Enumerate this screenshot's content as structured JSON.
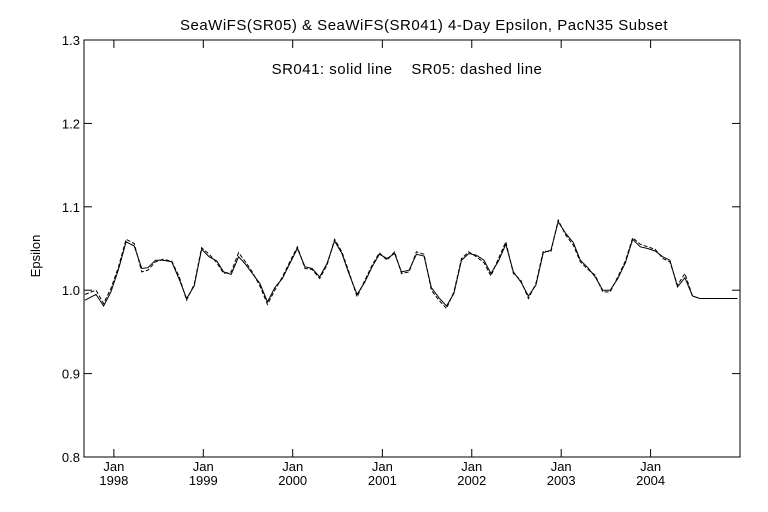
{
  "chart_data": {
    "type": "line",
    "title": "SeaWiFS(SR05) & SeaWiFS(SR041) 4-Day Epsilon, PacN35 Subset",
    "annotation": "SR041: solid line    SR05: dashed line",
    "xlabel": "",
    "ylabel": "Epsilon",
    "ylim": [
      0.8,
      1.3
    ],
    "yticks": [
      "0.8",
      "0.9",
      "1.0",
      "1.1",
      "1.2",
      "1.3"
    ],
    "xlim": [
      "1997-09-01",
      "2004-12-31"
    ],
    "xticks": [
      {
        "date": "1998-01-01",
        "month": "Jan",
        "year": "1998"
      },
      {
        "date": "1999-01-01",
        "month": "Jan",
        "year": "1999"
      },
      {
        "date": "2000-01-01",
        "month": "Jan",
        "year": "2000"
      },
      {
        "date": "2001-01-01",
        "month": "Jan",
        "year": "2001"
      },
      {
        "date": "2002-01-01",
        "month": "Jan",
        "year": "2002"
      },
      {
        "date": "2003-01-01",
        "month": "Jan",
        "year": "2003"
      },
      {
        "date": "2004-01-01",
        "month": "Jan",
        "year": "2004"
      }
    ],
    "grid": false,
    "series": [
      {
        "name": "SR041",
        "style": "solid",
        "x": [
          "1997-09-05",
          "1997-10-20",
          "1997-11-20",
          "1997-12-20",
          "1998-01-20",
          "1998-02-20",
          "1998-03-25",
          "1998-04-25",
          "1998-05-20",
          "1998-06-20",
          "1998-07-20",
          "1998-08-25",
          "1998-09-25",
          "1998-10-25",
          "1998-11-25",
          "1998-12-25",
          "1999-01-25",
          "1999-02-25",
          "1999-03-25",
          "1999-04-25",
          "1999-05-25",
          "1999-06-20",
          "1999-07-20",
          "1999-08-20",
          "1999-09-20",
          "1999-10-20",
          "1999-11-20",
          "1999-12-20",
          "2000-01-20",
          "2000-02-20",
          "2000-03-20",
          "2000-04-20",
          "2000-05-20",
          "2000-06-20",
          "2000-07-20",
          "2000-08-20",
          "2000-09-20",
          "2000-10-20",
          "2000-11-20",
          "2000-12-20",
          "2001-01-20",
          "2001-02-20",
          "2001-03-20",
          "2001-04-20",
          "2001-05-20",
          "2001-06-20",
          "2001-07-20",
          "2001-08-20",
          "2001-09-20",
          "2001-10-20",
          "2001-11-20",
          "2001-12-20",
          "2002-01-20",
          "2002-02-20",
          "2002-03-20",
          "2002-04-20",
          "2002-05-20",
          "2002-06-20",
          "2002-07-20",
          "2002-08-20",
          "2002-09-20",
          "2002-10-20",
          "2002-11-20",
          "2002-12-20",
          "2003-01-20",
          "2003-02-20",
          "2003-03-20",
          "2003-04-20",
          "2003-05-20",
          "2003-06-20",
          "2003-07-20",
          "2003-08-20",
          "2003-09-20",
          "2003-10-20",
          "2003-11-20",
          "2003-12-20",
          "2004-01-20",
          "2004-02-20",
          "2004-03-20",
          "2004-04-20",
          "2004-05-20",
          "2004-06-20",
          "2004-07-20",
          "2004-08-20",
          "2004-09-20",
          "2004-10-20",
          "2004-11-20",
          "2004-12-20"
        ],
        "y": [
          0.988,
          0.995,
          0.981,
          0.998,
          1.025,
          1.058,
          1.053,
          1.026,
          1.027,
          1.036,
          1.036,
          1.034,
          1.013,
          0.99,
          1.005,
          1.049,
          1.04,
          1.035,
          1.022,
          1.019,
          1.04,
          1.032,
          1.02,
          1.008,
          0.986,
          1.003,
          1.014,
          1.032,
          1.05,
          1.028,
          1.026,
          1.016,
          1.032,
          1.059,
          1.044,
          1.018,
          0.995,
          1.009,
          1.028,
          1.043,
          1.038,
          1.044,
          1.022,
          1.024,
          1.043,
          1.041,
          1.003,
          0.991,
          0.981,
          0.996,
          1.036,
          1.044,
          1.042,
          1.036,
          1.02,
          1.035,
          1.055,
          1.022,
          1.01,
          0.993,
          1.006,
          1.045,
          1.048,
          1.082,
          1.068,
          1.057,
          1.036,
          1.027,
          1.016,
          1.0,
          1.0,
          1.014,
          1.033,
          1.061,
          1.052,
          1.05,
          1.047,
          1.04,
          1.036,
          1.004,
          1.015,
          0.993,
          0.99,
          0.99,
          0.99,
          0.99,
          0.99,
          0.99
        ]
      },
      {
        "name": "SR05",
        "style": "dashed",
        "x": [
          "1997-09-05",
          "1997-10-20",
          "1997-11-20",
          "1997-12-20",
          "1998-01-20",
          "1998-02-20",
          "1998-03-25",
          "1998-04-25",
          "1998-05-20",
          "1998-06-20",
          "1998-07-20",
          "1998-08-25",
          "1998-09-25",
          "1998-10-25",
          "1998-11-25",
          "1998-12-25",
          "1999-01-25",
          "1999-02-25",
          "1999-03-25",
          "1999-04-25",
          "1999-05-25",
          "1999-06-20",
          "1999-07-20",
          "1999-08-20",
          "1999-09-20",
          "1999-10-20",
          "1999-11-20",
          "1999-12-20",
          "2000-01-20",
          "2000-02-20",
          "2000-03-20",
          "2000-04-20",
          "2000-05-20",
          "2000-06-20",
          "2000-07-20",
          "2000-08-20",
          "2000-09-20",
          "2000-10-20",
          "2000-11-20",
          "2000-12-20",
          "2001-01-20",
          "2001-02-20",
          "2001-03-20",
          "2001-04-20",
          "2001-05-20",
          "2001-06-20",
          "2001-07-20",
          "2001-08-20",
          "2001-09-20",
          "2001-10-20",
          "2001-11-20",
          "2001-12-20",
          "2002-01-20",
          "2002-02-20",
          "2002-03-20",
          "2002-04-20",
          "2002-05-20",
          "2002-06-20",
          "2002-07-20",
          "2002-08-20",
          "2002-09-20",
          "2002-10-20",
          "2002-11-20",
          "2002-12-20",
          "2003-01-20",
          "2003-02-20",
          "2003-03-20",
          "2003-04-20",
          "2003-05-20",
          "2003-06-20",
          "2003-07-20",
          "2003-08-20",
          "2003-09-20",
          "2003-10-20",
          "2003-11-20",
          "2003-12-20",
          "2004-01-20",
          "2004-02-20",
          "2004-03-20",
          "2004-04-20",
          "2004-05-20",
          "2004-06-20",
          "2004-07-20",
          "2004-08-20",
          "2004-09-20",
          "2004-10-20",
          "2004-11-20",
          "2004-12-20"
        ],
        "y": [
          0.995,
          1.0,
          0.984,
          1.002,
          1.028,
          1.061,
          1.056,
          1.022,
          1.024,
          1.034,
          1.037,
          1.035,
          1.016,
          0.988,
          1.007,
          1.051,
          1.043,
          1.033,
          1.02,
          1.022,
          1.045,
          1.035,
          1.022,
          1.005,
          0.983,
          1.0,
          1.016,
          1.034,
          1.052,
          1.026,
          1.025,
          1.014,
          1.03,
          1.061,
          1.046,
          1.02,
          0.992,
          1.011,
          1.03,
          1.045,
          1.036,
          1.046,
          1.02,
          1.022,
          1.046,
          1.043,
          1.0,
          0.988,
          0.978,
          0.998,
          1.038,
          1.046,
          1.04,
          1.033,
          1.017,
          1.038,
          1.058,
          1.02,
          1.012,
          0.99,
          1.008,
          1.047,
          1.046,
          1.084,
          1.066,
          1.054,
          1.034,
          1.025,
          1.018,
          0.998,
          0.998,
          1.016,
          1.035,
          1.063,
          1.055,
          1.052,
          1.049,
          1.038,
          1.034,
          1.006,
          1.02,
          0.993,
          0.99,
          0.99,
          0.99,
          0.99,
          0.99,
          0.99
        ]
      }
    ]
  }
}
